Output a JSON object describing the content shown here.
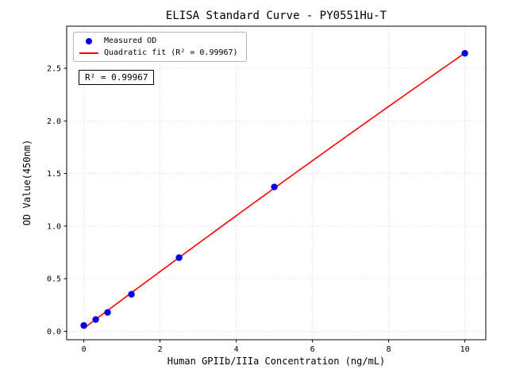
{
  "chart_data": {
    "type": "scatter",
    "title": "ELISA Standard Curve - PY0551Hu-T",
    "xlabel": "Human GPIIb/IIIa Concentration (ng/mL)",
    "ylabel": "OD Value(450nm)",
    "xlim": [
      -0.45,
      10.55
    ],
    "ylim": [
      -0.08,
      2.9
    ],
    "x_ticks": [
      0,
      2,
      4,
      6,
      8,
      10
    ],
    "y_ticks": [
      0.0,
      0.5,
      1.0,
      1.5,
      2.0,
      2.5
    ],
    "grid": true,
    "series": [
      {
        "name": "Measured OD",
        "type": "scatter",
        "color": "#0000e0",
        "x": [
          0,
          0.3125,
          0.625,
          1.25,
          2.5,
          5,
          10
        ],
        "y": [
          0.055,
          0.112,
          0.18,
          0.352,
          0.7,
          1.372,
          2.642
        ]
      },
      {
        "name": "Quadratic fit (R² = 0.99967)",
        "type": "line",
        "fit": "quadratic",
        "color": "#ff0000"
      }
    ],
    "legend": {
      "position": "upper-left",
      "entries": [
        "Measured OD",
        "Quadratic fit (R² = 0.99967)"
      ]
    },
    "annotation": "R² = 0.99967"
  }
}
